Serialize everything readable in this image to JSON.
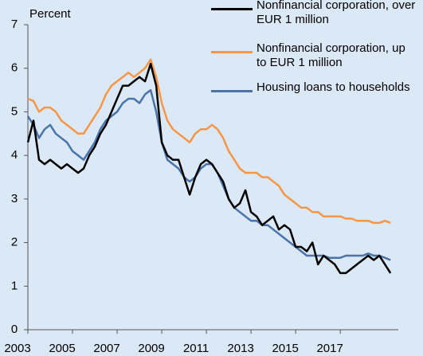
{
  "chart_data": {
    "type": "line",
    "y_label": "Percent",
    "x": [
      2003,
      2003.25,
      2003.5,
      2003.75,
      2004,
      2004.25,
      2004.5,
      2004.75,
      2005,
      2005.25,
      2005.5,
      2005.75,
      2006,
      2006.25,
      2006.5,
      2006.75,
      2007,
      2007.25,
      2007.5,
      2007.75,
      2008,
      2008.25,
      2008.5,
      2008.75,
      2009,
      2009.25,
      2009.5,
      2009.75,
      2010,
      2010.25,
      2010.5,
      2010.75,
      2011,
      2011.25,
      2011.5,
      2011.75,
      2012,
      2012.25,
      2012.5,
      2012.75,
      2013,
      2013.25,
      2013.5,
      2013.75,
      2014,
      2014.25,
      2014.5,
      2014.75,
      2015,
      2015.25,
      2015.5,
      2015.75,
      2016,
      2016.25,
      2016.5,
      2016.75,
      2017,
      2017.25,
      2017.5,
      2017.75,
      2018,
      2018.25,
      2018.5,
      2018.75,
      2019,
      2019.25
    ],
    "series": [
      {
        "name": "Nonfinancial corporation, over EUR 1 million",
        "color": "#000000",
        "values": [
          4.3,
          4.8,
          3.9,
          3.8,
          3.9,
          3.8,
          3.7,
          3.8,
          3.7,
          3.6,
          3.7,
          4.0,
          4.2,
          4.5,
          4.7,
          5.0,
          5.3,
          5.6,
          5.6,
          5.7,
          5.8,
          5.7,
          6.1,
          5.6,
          4.3,
          4.0,
          3.9,
          3.9,
          3.5,
          3.1,
          3.5,
          3.8,
          3.9,
          3.8,
          3.6,
          3.4,
          3.0,
          2.8,
          2.9,
          3.2,
          2.7,
          2.6,
          2.4,
          2.5,
          2.6,
          2.3,
          2.4,
          2.3,
          1.9,
          1.9,
          1.8,
          2.0,
          1.5,
          1.7,
          1.6,
          1.5,
          1.3,
          1.3,
          1.4,
          1.5,
          1.6,
          1.7,
          1.6,
          1.7,
          1.5,
          1.3
        ]
      },
      {
        "name": "Nonfinancial corporation, up to EUR 1 million",
        "color": "#f79646",
        "values": [
          5.3,
          5.25,
          5.0,
          5.1,
          5.1,
          5.0,
          4.8,
          4.7,
          4.6,
          4.5,
          4.5,
          4.7,
          4.9,
          5.1,
          5.4,
          5.6,
          5.7,
          5.8,
          5.9,
          5.8,
          5.9,
          6.0,
          6.2,
          5.8,
          5.2,
          4.8,
          4.6,
          4.5,
          4.4,
          4.3,
          4.5,
          4.6,
          4.6,
          4.7,
          4.6,
          4.4,
          4.1,
          3.9,
          3.7,
          3.6,
          3.6,
          3.6,
          3.5,
          3.5,
          3.4,
          3.3,
          3.1,
          3.0,
          2.9,
          2.8,
          2.8,
          2.7,
          2.7,
          2.6,
          2.6,
          2.6,
          2.6,
          2.55,
          2.55,
          2.5,
          2.5,
          2.5,
          2.45,
          2.45,
          2.5,
          2.45
        ]
      },
      {
        "name": "Housing loans to households",
        "color": "#4a74a8",
        "values": [
          4.9,
          4.7,
          4.4,
          4.6,
          4.7,
          4.5,
          4.4,
          4.3,
          4.1,
          4.0,
          3.9,
          4.1,
          4.3,
          4.6,
          4.8,
          4.9,
          5.0,
          5.2,
          5.3,
          5.3,
          5.2,
          5.4,
          5.5,
          5.0,
          4.3,
          3.9,
          3.8,
          3.7,
          3.5,
          3.4,
          3.5,
          3.7,
          3.8,
          3.8,
          3.6,
          3.3,
          3.0,
          2.8,
          2.7,
          2.6,
          2.5,
          2.5,
          2.4,
          2.4,
          2.3,
          2.2,
          2.1,
          2.0,
          1.9,
          1.8,
          1.7,
          1.7,
          1.7,
          1.7,
          1.65,
          1.65,
          1.65,
          1.7,
          1.7,
          1.7,
          1.7,
          1.75,
          1.7,
          1.7,
          1.65,
          1.6
        ]
      }
    ],
    "xlim": [
      2003,
      2019.6
    ],
    "xticks": [
      2003,
      2005,
      2007,
      2009,
      2011,
      2013,
      2015,
      2017
    ],
    "ylim": [
      0,
      7
    ],
    "yticks": [
      0,
      1,
      2,
      3,
      4,
      5,
      6,
      7
    ],
    "grid": false
  }
}
